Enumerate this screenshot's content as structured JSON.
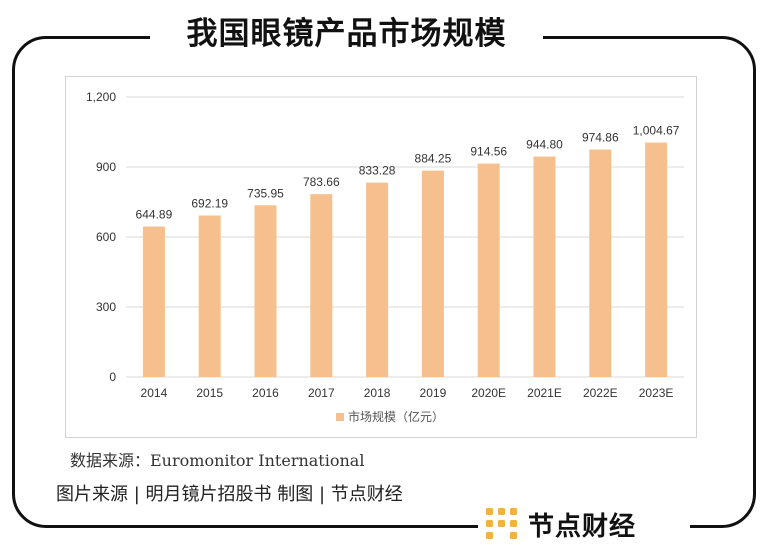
{
  "page": {
    "title": "我国眼镜产品市场规模",
    "source": "数据来源：Euromonitor International",
    "credit": "图片来源 | 明月镜片招股书   制图 | 节点财经",
    "brand_name": "节点财经",
    "brand_icon": "node-grid-logo-icon",
    "colors": {
      "bar": "#F6C08E",
      "grid": "#d9d9d9",
      "logo": "#F2B33B",
      "frame": "#111111"
    }
  },
  "chart_data": {
    "type": "bar",
    "categories": [
      "2014",
      "2015",
      "2016",
      "2017",
      "2018",
      "2019",
      "2020E",
      "2021E",
      "2022E",
      "2023E"
    ],
    "series": [
      {
        "name": "市场规模（亿元）",
        "values": [
          644.89,
          692.19,
          735.95,
          783.66,
          833.28,
          884.25,
          914.56,
          944.8,
          974.86,
          1004.67
        ]
      }
    ],
    "data_labels": [
      "644.89",
      "692.19",
      "735.95",
      "783.66",
      "833.28",
      "884.25",
      "914.56",
      "944.80",
      "974.86",
      "1,004.67"
    ],
    "y_ticks": [
      0,
      300,
      600,
      900,
      1200
    ],
    "y_tick_labels": [
      "0",
      "300",
      "600",
      "900",
      "1,200"
    ],
    "ylim": [
      0,
      1200
    ],
    "grid": true,
    "legend_position": "bottom"
  }
}
